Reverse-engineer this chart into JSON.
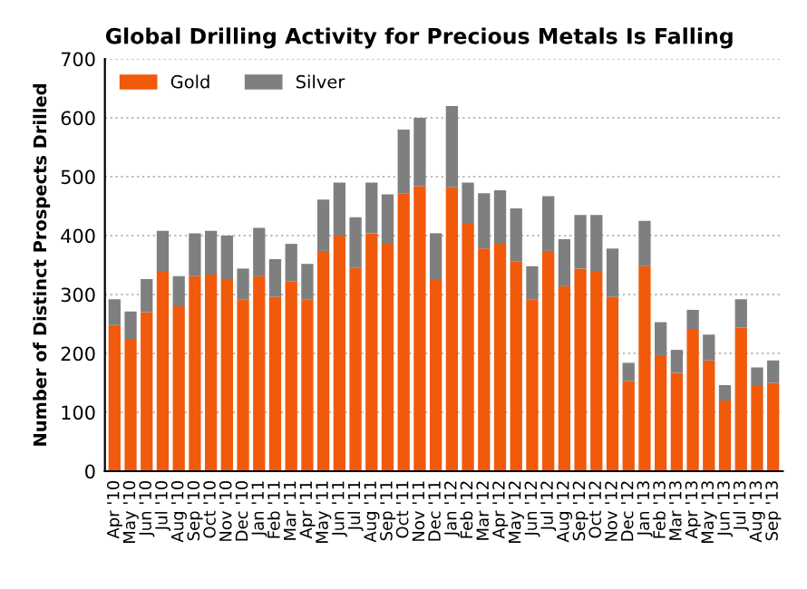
{
  "chart_data": {
    "type": "bar",
    "stacked": true,
    "title": "Global Drilling Activity for Precious Metals Is Falling",
    "ylabel": "Number of Distinct Prospects Drilled",
    "categories": [
      "Apr '10",
      "May '10",
      "Jun '10",
      "Jul '10",
      "Aug '10",
      "Sep '10",
      "Oct '10",
      "Nov '10",
      "Dec '10",
      "Jan '11",
      "Feb '11",
      "Mar '11",
      "Apr '11",
      "May '11",
      "Jun '11",
      "Jul '11",
      "Aug '11",
      "Sep '11",
      "Oct '11",
      "Nov '11",
      "Dec '11",
      "Jan '12",
      "Feb '12",
      "Mar '12",
      "Apr '12",
      "May '12",
      "Jun '12",
      "Jul '12",
      "Aug '12",
      "Sep '12",
      "Oct '12",
      "Nov '12",
      "Dec '12",
      "Jan '13",
      "Feb '13",
      "Mar '13",
      "Apr '13",
      "May '13",
      "Jun '13",
      "Jul '13",
      "Aug '13",
      "Sep '13"
    ],
    "series": [
      {
        "name": "Gold",
        "color": "#f05a0a",
        "values": [
          248,
          223,
          270,
          340,
          280,
          331,
          334,
          326,
          292,
          331,
          296,
          322,
          292,
          374,
          400,
          345,
          404,
          386,
          472,
          484,
          326,
          482,
          420,
          378,
          386,
          356,
          292,
          374,
          314,
          344,
          340,
          296,
          153,
          348,
          197,
          167,
          240,
          188,
          120,
          244,
          146,
          150
        ]
      },
      {
        "name": "Silver",
        "color": "#7f7f7f",
        "values": [
          44,
          48,
          56,
          68,
          51,
          73,
          74,
          74,
          52,
          82,
          64,
          64,
          60,
          87,
          90,
          86,
          86,
          84,
          108,
          116,
          78,
          138,
          70,
          94,
          91,
          90,
          56,
          93,
          80,
          91,
          95,
          82,
          31,
          77,
          56,
          39,
          34,
          44,
          26,
          48,
          30,
          38
        ]
      }
    ],
    "ylim": [
      0,
      700
    ],
    "yticks": [
      0,
      100,
      200,
      300,
      400,
      500,
      600,
      700
    ],
    "grid": "y",
    "legend": "top left"
  }
}
